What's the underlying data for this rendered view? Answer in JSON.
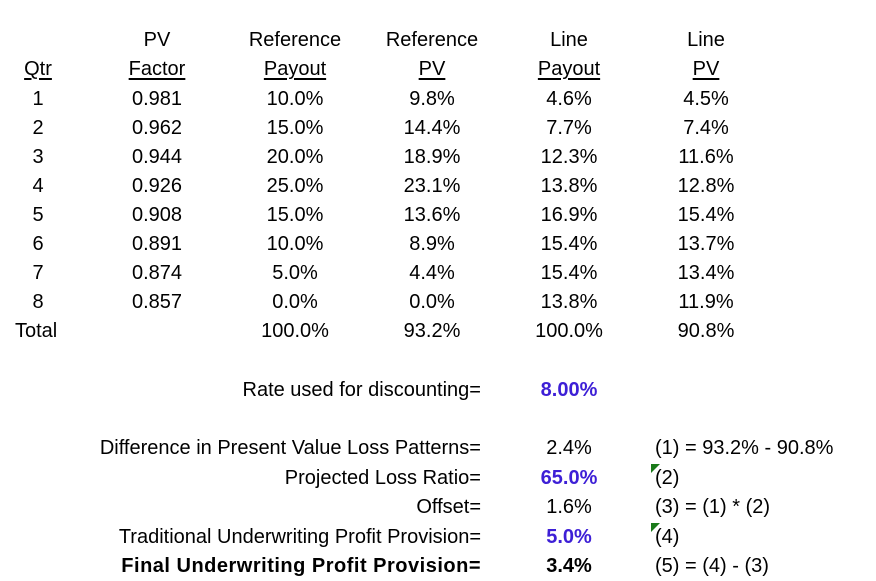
{
  "headers": {
    "qtr": [
      "",
      "Qtr"
    ],
    "pv_factor": [
      "PV",
      "Factor"
    ],
    "ref_payout": [
      "Reference",
      "Payout"
    ],
    "ref_pv": [
      "Reference",
      "PV"
    ],
    "line_payout": [
      "Line",
      "Payout"
    ],
    "line_pv": [
      "Line",
      "PV"
    ]
  },
  "rows": [
    {
      "qtr": "1",
      "pv_factor": "0.981",
      "ref_payout": "10.0%",
      "ref_pv": "9.8%",
      "line_payout": "4.6%",
      "line_pv": "4.5%"
    },
    {
      "qtr": "2",
      "pv_factor": "0.962",
      "ref_payout": "15.0%",
      "ref_pv": "14.4%",
      "line_payout": "7.7%",
      "line_pv": "7.4%"
    },
    {
      "qtr": "3",
      "pv_factor": "0.944",
      "ref_payout": "20.0%",
      "ref_pv": "18.9%",
      "line_payout": "12.3%",
      "line_pv": "11.6%"
    },
    {
      "qtr": "4",
      "pv_factor": "0.926",
      "ref_payout": "25.0%",
      "ref_pv": "23.1%",
      "line_payout": "13.8%",
      "line_pv": "12.8%"
    },
    {
      "qtr": "5",
      "pv_factor": "0.908",
      "ref_payout": "15.0%",
      "ref_pv": "13.6%",
      "line_payout": "16.9%",
      "line_pv": "15.4%"
    },
    {
      "qtr": "6",
      "pv_factor": "0.891",
      "ref_payout": "10.0%",
      "ref_pv": "8.9%",
      "line_payout": "15.4%",
      "line_pv": "13.7%"
    },
    {
      "qtr": "7",
      "pv_factor": "0.874",
      "ref_payout": "5.0%",
      "ref_pv": "4.4%",
      "line_payout": "15.4%",
      "line_pv": "13.4%"
    },
    {
      "qtr": "8",
      "pv_factor": "0.857",
      "ref_payout": "0.0%",
      "ref_pv": "0.0%",
      "line_payout": "13.8%",
      "line_pv": "11.9%"
    }
  ],
  "total": {
    "label": "Total",
    "ref_payout": "100.0%",
    "ref_pv": "93.2%",
    "line_payout": "100.0%",
    "line_pv": "90.8%"
  },
  "rate": {
    "label": "Rate used for discounting=",
    "value": "8.00%"
  },
  "summary": [
    {
      "label": "Difference in Present Value Loss Patterns=",
      "value": "2.4%",
      "note": "(1) = 93.2% - 90.8%",
      "input": false,
      "bold": false,
      "flag": false
    },
    {
      "label": "Projected Loss Ratio=",
      "value": "65.0%",
      "note": "(2)",
      "input": true,
      "bold": false,
      "flag": true
    },
    {
      "label": "Offset=",
      "value": "1.6%",
      "note": "(3) = (1) * (2)",
      "input": false,
      "bold": false,
      "flag": false
    },
    {
      "label": "Traditional Underwriting Profit Provision=",
      "value": "5.0%",
      "note": "(4)",
      "input": true,
      "bold": false,
      "flag": true
    },
    {
      "label": "Final Underwriting Profit Provision=",
      "value": "3.4%",
      "note": "(5) = (4) - (3)",
      "input": false,
      "bold": true,
      "flag": false
    }
  ],
  "colors": {
    "input_value": "#3d1fd6",
    "comment_flag": "#1a7a1a"
  }
}
